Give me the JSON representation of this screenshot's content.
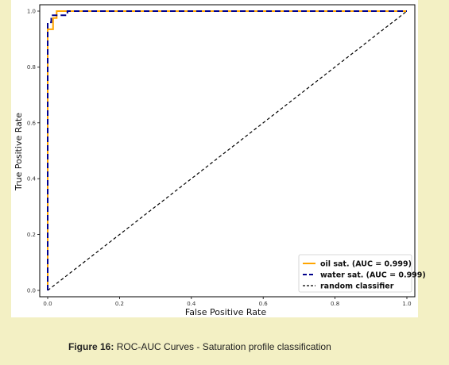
{
  "chart_data": {
    "type": "line",
    "xlabel": "False Positive Rate",
    "ylabel": "True Positive Rate",
    "xlim": [
      0,
      1
    ],
    "ylim": [
      0,
      1
    ],
    "xticks": [
      0.0,
      0.2,
      0.4,
      0.6,
      0.8,
      1.0
    ],
    "yticks": [
      0.0,
      0.2,
      0.4,
      0.6,
      0.8,
      1.0
    ],
    "xtick_labels": [
      "0.0",
      "0.2",
      "0.4",
      "0.6",
      "0.8",
      "1.0"
    ],
    "ytick_labels": [
      "0.0",
      "0.2",
      "0.4",
      "0.6",
      "0.8",
      "1.0"
    ],
    "grid": false,
    "legend_position": "lower-right",
    "series": [
      {
        "name": "oil sat. (AUC = 0.999)",
        "color": "#ffa500",
        "style": "solid",
        "x": [
          0.0,
          0.0,
          0.0,
          0.015,
          0.015,
          0.025,
          0.025,
          1.0
        ],
        "y": [
          0.0,
          0.935,
          0.935,
          0.935,
          0.975,
          0.975,
          1.0,
          1.0
        ]
      },
      {
        "name": "water sat. (AUC = 0.999)",
        "color": "#00008b",
        "style": "dashed",
        "x": [
          0.0,
          0.0,
          0.01,
          0.01,
          0.055,
          0.055,
          1.0
        ],
        "y": [
          0.0,
          0.96,
          0.96,
          0.985,
          0.985,
          1.0,
          1.0
        ]
      },
      {
        "name": "random classifier",
        "color": "#000000",
        "style": "dashed",
        "x": [
          0.0,
          1.0
        ],
        "y": [
          0.0,
          1.0
        ]
      }
    ]
  },
  "caption": {
    "figure_number": "Figure 16:",
    "text": " ROC-AUC Curves - Saturation profile classification"
  }
}
